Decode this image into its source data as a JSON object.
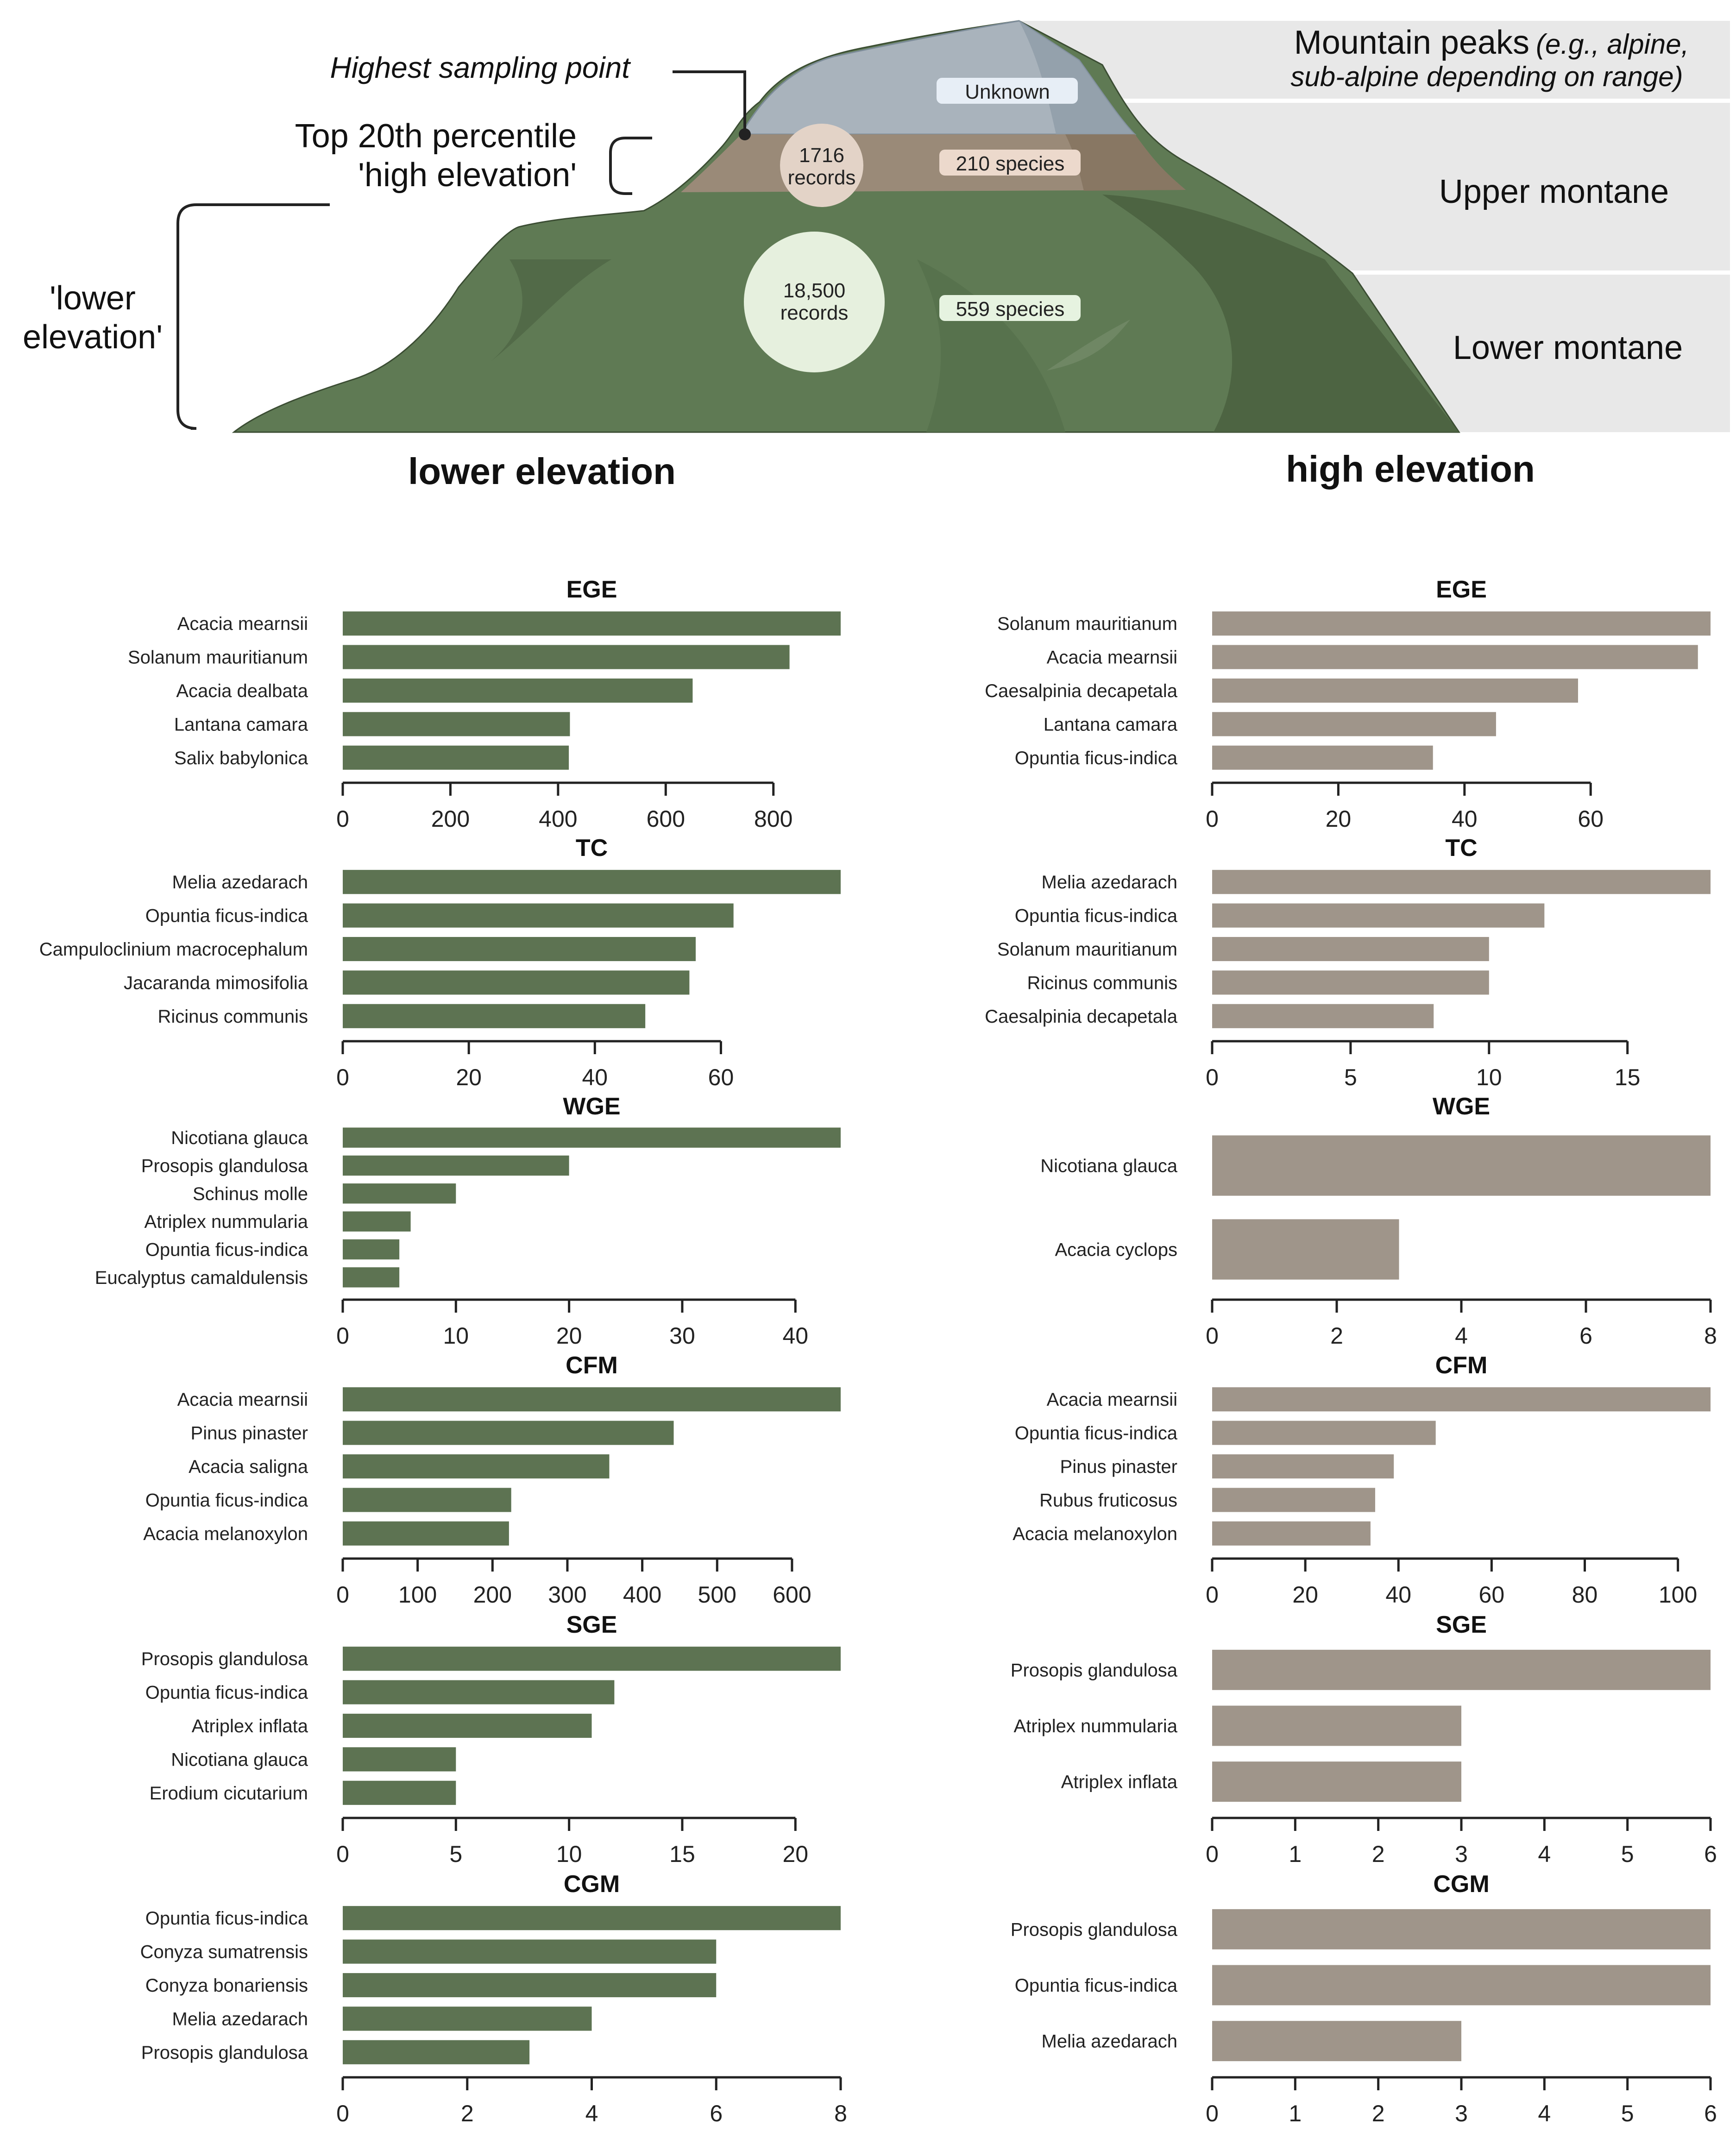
{
  "diagram": {
    "highest_sampling_point": "Highest sampling point",
    "top20_line1": "Top 20th percentile",
    "top20_line2": "'high elevation'",
    "lower_line1": "'lower",
    "lower_line2": "elevation'",
    "zones": {
      "peaks_line1": "Mountain peaks",
      "peaks_paren": "(e.g., alpine,",
      "peaks_line2": "sub-alpine depending on range)",
      "upper": "Upper montane",
      "lower": "Lower montane"
    },
    "unknown_badge": "Unknown",
    "high_records_value": "1716",
    "high_records_word": "records",
    "high_species": "210 species",
    "low_records_value": "18,500",
    "low_records_word": "records",
    "low_species": "559 species",
    "col_low_title": "lower elevation",
    "col_high_title": "high elevation",
    "colors": {
      "low_bar": "#5d7352",
      "high_bar": "#9f958a",
      "mountain_green": "#5f7a54",
      "mountain_gray": "#a9b3bc",
      "band_brown": "#9a8a78",
      "zone_bg": "#e8e8e8"
    }
  },
  "chart_data": [
    {
      "type": "bar",
      "orientation": "horizontal",
      "column": "lower elevation",
      "title": "EGE",
      "categories": [
        "Acacia mearnsii",
        "Solanum mauritianum",
        "Acacia dealbata",
        "Lantana camara",
        "Salix babylonica"
      ],
      "values": [
        925,
        830,
        650,
        422,
        420
      ],
      "xlim": [
        0,
        925
      ],
      "ticks": [
        0,
        200,
        400,
        600,
        800
      ],
      "xlabel": "",
      "ylabel": ""
    },
    {
      "type": "bar",
      "orientation": "horizontal",
      "column": "high elevation",
      "title": "EGE",
      "categories": [
        "Solanum mauritianum",
        "Acacia mearnsii",
        "Caesalpinia decapetala",
        "Lantana camara",
        "Opuntia ficus-indica"
      ],
      "values": [
        79,
        77,
        58,
        45,
        35
      ],
      "xlim": [
        0,
        79
      ],
      "ticks": [
        0,
        20,
        40,
        60
      ],
      "xlabel": "",
      "ylabel": ""
    },
    {
      "type": "bar",
      "orientation": "horizontal",
      "column": "lower elevation",
      "title": "TC",
      "categories": [
        "Melia azedarach",
        "Opuntia ficus-indica",
        "Campuloclinium macrocephalum",
        "Jacaranda mimosifolia",
        "Ricinus communis"
      ],
      "values": [
        79,
        62,
        56,
        55,
        48
      ],
      "xlim": [
        0,
        79
      ],
      "ticks": [
        0,
        20,
        40,
        60
      ],
      "xlabel": "",
      "ylabel": ""
    },
    {
      "type": "bar",
      "orientation": "horizontal",
      "column": "high elevation",
      "title": "TC",
      "categories": [
        "Melia azedarach",
        "Opuntia ficus-indica",
        "Solanum mauritianum",
        "Ricinus communis",
        "Caesalpinia decapetala"
      ],
      "values": [
        18,
        12,
        10,
        10,
        8
      ],
      "xlim": [
        0,
        18
      ],
      "ticks": [
        0,
        5,
        10,
        15
      ],
      "xlabel": "",
      "ylabel": ""
    },
    {
      "type": "bar",
      "orientation": "horizontal",
      "column": "lower elevation",
      "title": "WGE",
      "categories": [
        "Nicotiana glauca",
        "Prosopis glandulosa",
        "Schinus molle",
        "Atriplex nummularia",
        "Opuntia ficus-indica",
        "Eucalyptus camaldulensis"
      ],
      "values": [
        44,
        20,
        10,
        6,
        5,
        5
      ],
      "xlim": [
        0,
        44
      ],
      "ticks": [
        0,
        10,
        20,
        30,
        40
      ],
      "xlabel": "",
      "ylabel": ""
    },
    {
      "type": "bar",
      "orientation": "horizontal",
      "column": "high elevation",
      "title": "WGE",
      "categories": [
        "Nicotiana glauca",
        "Acacia cyclops"
      ],
      "values": [
        8,
        3
      ],
      "xlim": [
        0,
        8
      ],
      "ticks": [
        0,
        2,
        4,
        6,
        8
      ],
      "xlabel": "",
      "ylabel": ""
    },
    {
      "type": "bar",
      "orientation": "horizontal",
      "column": "lower elevation",
      "title": "CFM",
      "categories": [
        "Acacia mearnsii",
        "Pinus pinaster",
        "Acacia saligna",
        "Opuntia ficus-indica",
        "Acacia melanoxylon"
      ],
      "values": [
        665,
        442,
        356,
        225,
        222
      ],
      "xlim": [
        0,
        665
      ],
      "ticks": [
        0,
        100,
        200,
        300,
        400,
        500,
        600
      ],
      "xlabel": "",
      "ylabel": ""
    },
    {
      "type": "bar",
      "orientation": "horizontal",
      "column": "high elevation",
      "title": "CFM",
      "categories": [
        "Acacia mearnsii",
        "Opuntia ficus-indica",
        "Pinus pinaster",
        "Rubus fruticosus",
        "Acacia melanoxylon"
      ],
      "values": [
        107,
        48,
        39,
        35,
        34
      ],
      "xlim": [
        0,
        107
      ],
      "ticks": [
        0,
        20,
        40,
        60,
        80,
        100
      ],
      "xlabel": "",
      "ylabel": ""
    },
    {
      "type": "bar",
      "orientation": "horizontal",
      "column": "lower elevation",
      "title": "SGE",
      "categories": [
        "Prosopis glandulosa",
        "Opuntia ficus-indica",
        "Atriplex inflata",
        "Nicotiana glauca",
        "Erodium cicutarium"
      ],
      "values": [
        22,
        12,
        11,
        5,
        5
      ],
      "xlim": [
        0,
        22
      ],
      "ticks": [
        0,
        5,
        10,
        15,
        20
      ],
      "xlabel": "",
      "ylabel": ""
    },
    {
      "type": "bar",
      "orientation": "horizontal",
      "column": "high elevation",
      "title": "SGE",
      "categories": [
        "Prosopis glandulosa",
        "Atriplex nummularia",
        "Atriplex inflata"
      ],
      "values": [
        6,
        3,
        3
      ],
      "xlim": [
        0,
        6
      ],
      "ticks": [
        0,
        1,
        2,
        3,
        4,
        5,
        6
      ],
      "xlabel": "",
      "ylabel": ""
    },
    {
      "type": "bar",
      "orientation": "horizontal",
      "column": "lower elevation",
      "title": "CGM",
      "categories": [
        "Opuntia ficus-indica",
        "Conyza sumatrensis",
        "Conyza bonariensis",
        "Melia azedarach",
        "Prosopis glandulosa"
      ],
      "values": [
        8,
        6,
        6,
        4,
        3
      ],
      "xlim": [
        0,
        8
      ],
      "ticks": [
        0,
        2,
        4,
        6,
        8
      ],
      "xlabel": "",
      "ylabel": ""
    },
    {
      "type": "bar",
      "orientation": "horizontal",
      "column": "high elevation",
      "title": "CGM",
      "categories": [
        "Prosopis glandulosa",
        "Opuntia ficus-indica",
        "Melia azedarach"
      ],
      "values": [
        6,
        6,
        3
      ],
      "xlim": [
        0,
        6
      ],
      "ticks": [
        0,
        1,
        2,
        3,
        4,
        5,
        6
      ],
      "xlabel": "",
      "ylabel": ""
    }
  ]
}
